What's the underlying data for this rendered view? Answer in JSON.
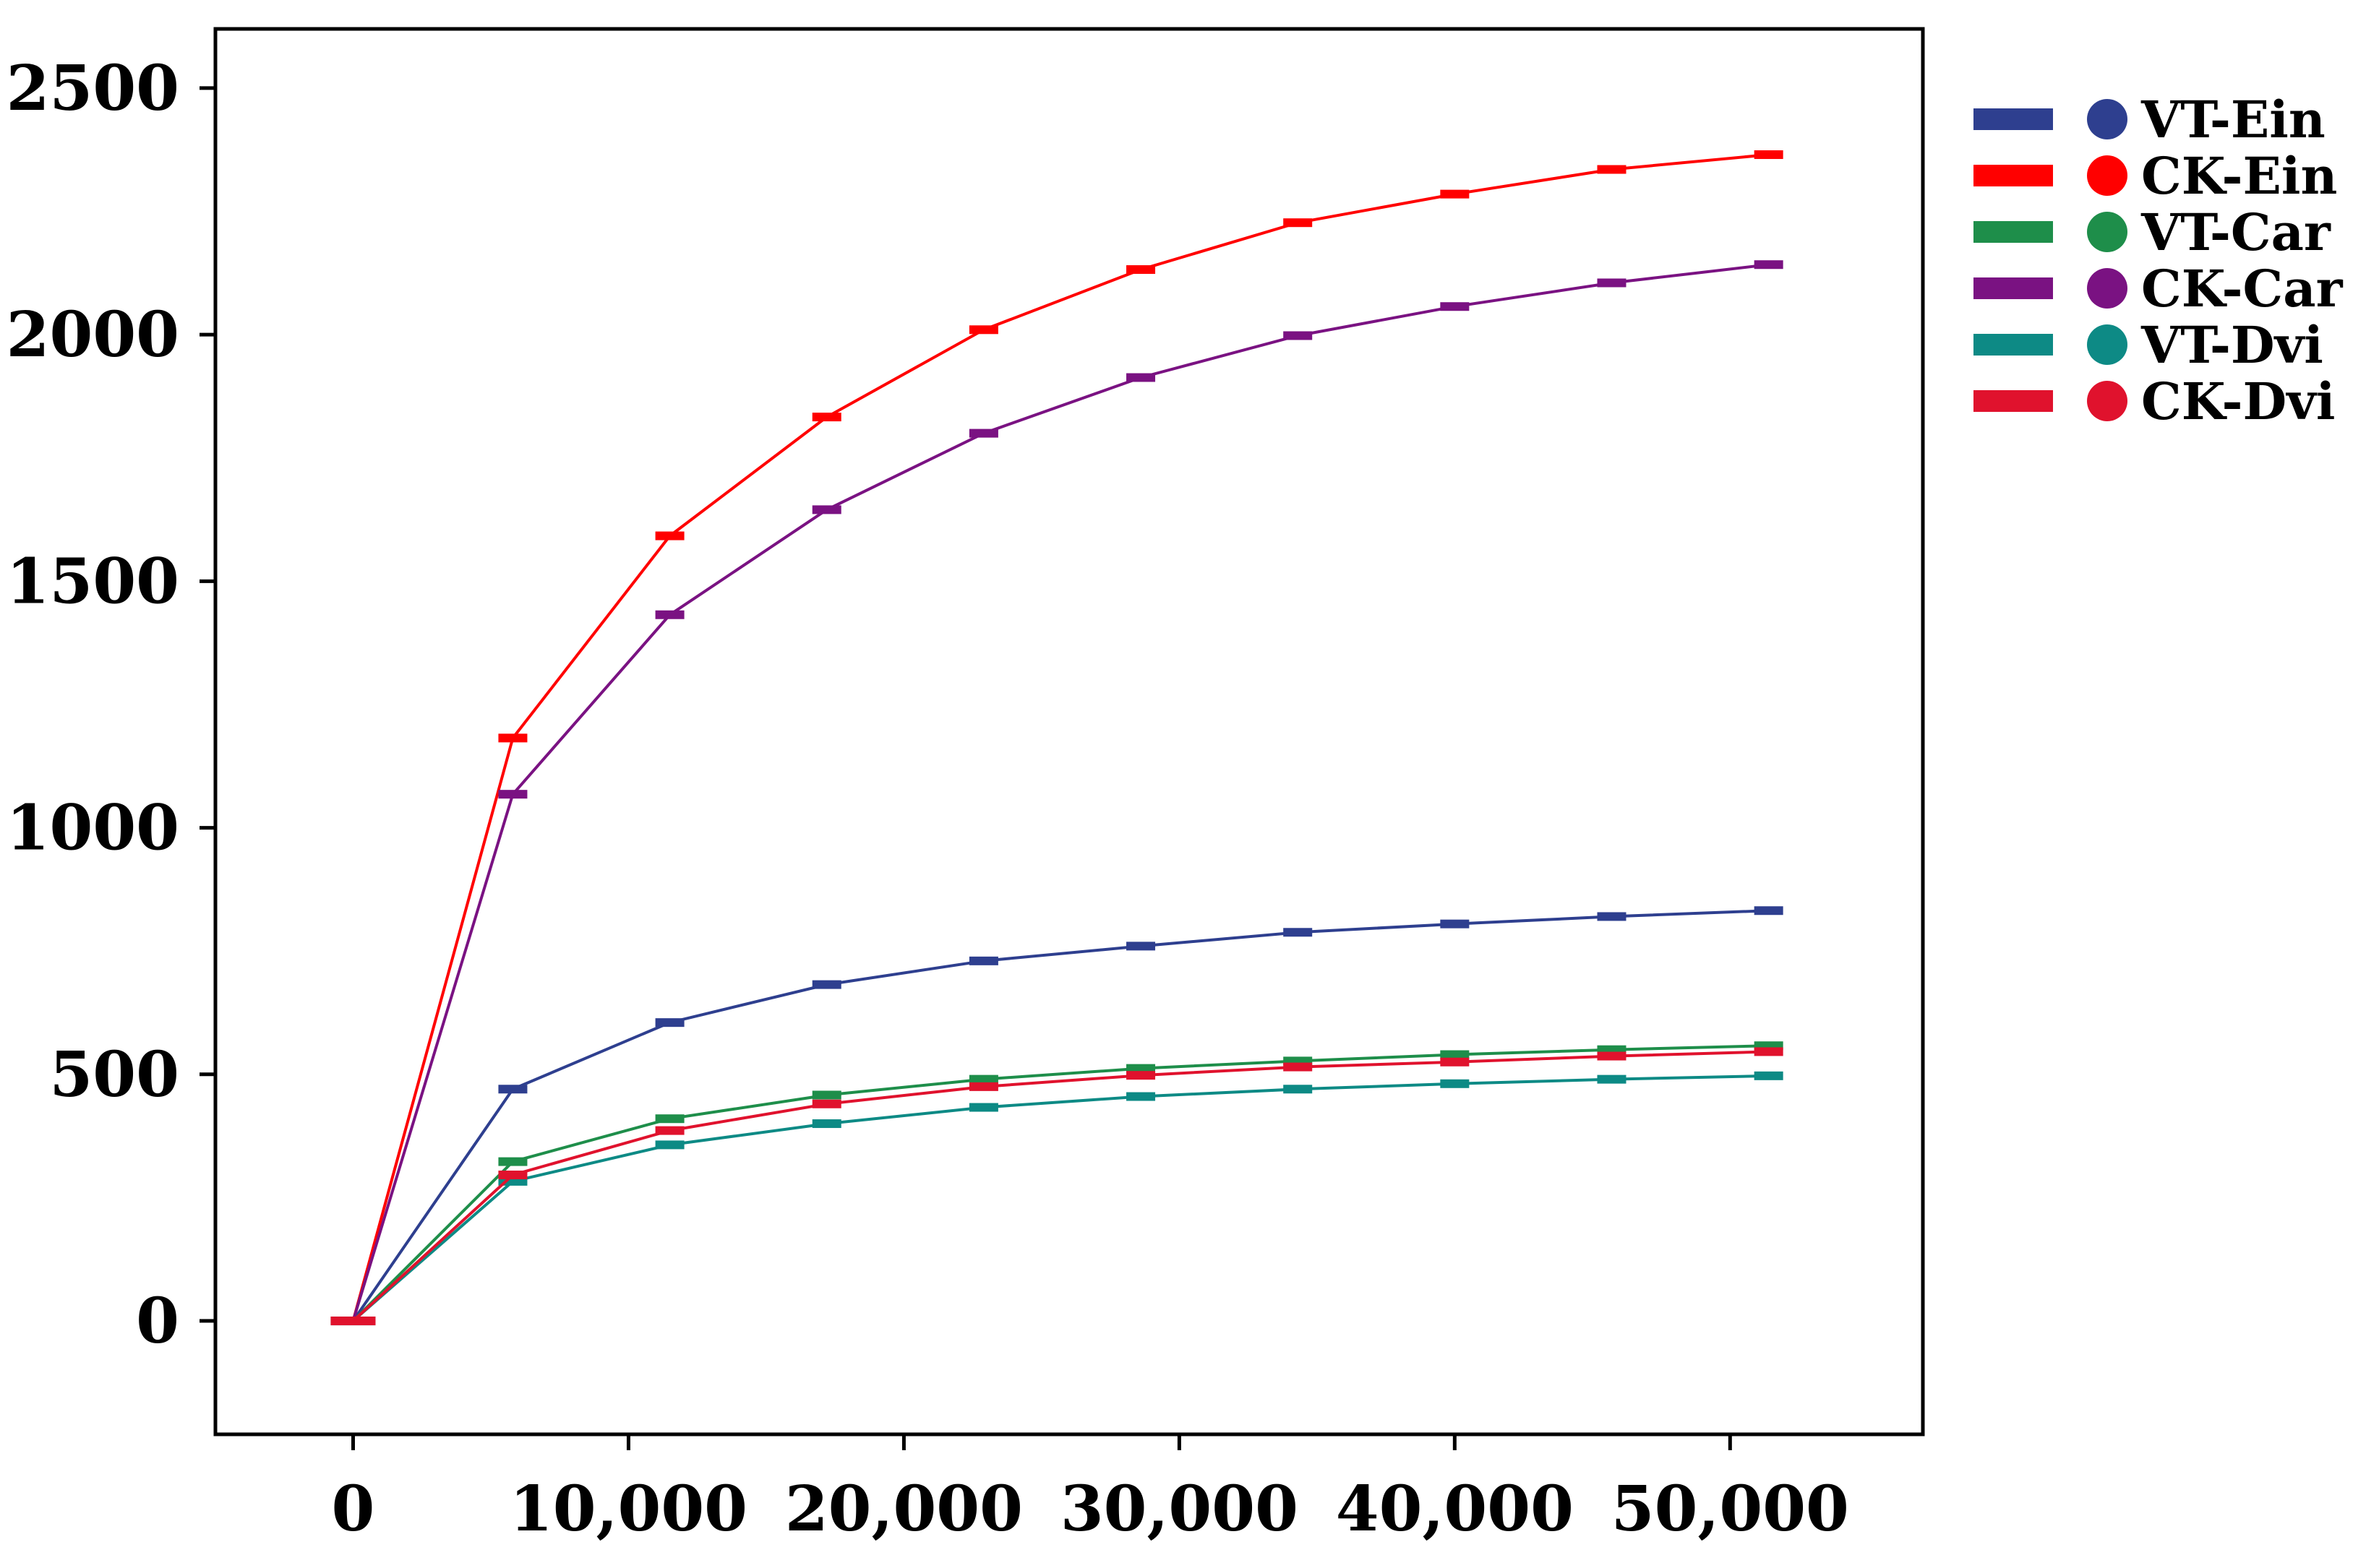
{
  "chart_data": {
    "type": "line",
    "title": "",
    "xlabel": "",
    "ylabel": "",
    "xlim": [
      -5000,
      57000
    ],
    "ylim": [
      -230,
      2620
    ],
    "x_ticks": [
      0,
      10000,
      20000,
      30000,
      40000,
      50000
    ],
    "x_tick_labels": [
      "0",
      "10,000",
      "20,000",
      "30,000",
      "40,000",
      "50,000"
    ],
    "y_ticks": [
      0,
      500,
      1000,
      1500,
      2000,
      2500
    ],
    "y_tick_labels": [
      "0",
      "500",
      "1000",
      "1500",
      "2000",
      "2500"
    ],
    "grid": false,
    "legend_position": "right",
    "x": [
      0,
      5800,
      11500,
      17200,
      22900,
      28600,
      34300,
      40000,
      45700,
      51400
    ],
    "series": [
      {
        "name": "VT-Ein",
        "color": "#2E3F8F",
        "values": [
          0,
          470,
          605,
          682,
          730,
          760,
          788,
          805,
          820,
          832
        ]
      },
      {
        "name": "CK-Ein",
        "color": "#FF0000",
        "values": [
          0,
          1182,
          1592,
          1833,
          2010,
          2132,
          2227,
          2285,
          2335,
          2365
        ]
      },
      {
        "name": "VT-Car",
        "color": "#1E8E4A",
        "values": [
          0,
          323,
          410,
          458,
          490,
          512,
          527,
          540,
          550,
          558
        ]
      },
      {
        "name": "CK-Car",
        "color": "#7A1282",
        "values": [
          0,
          1068,
          1432,
          1645,
          1800,
          1913,
          1998,
          2057,
          2105,
          2142
        ]
      },
      {
        "name": "VT-Dvi",
        "color": "#0D8A85",
        "values": [
          0,
          283,
          357,
          400,
          433,
          455,
          470,
          481,
          490,
          497
        ]
      },
      {
        "name": "CK-Dvi",
        "color": "#E0122D",
        "values": [
          0,
          296,
          386,
          440,
          475,
          498,
          515,
          525,
          537,
          546
        ]
      }
    ]
  }
}
